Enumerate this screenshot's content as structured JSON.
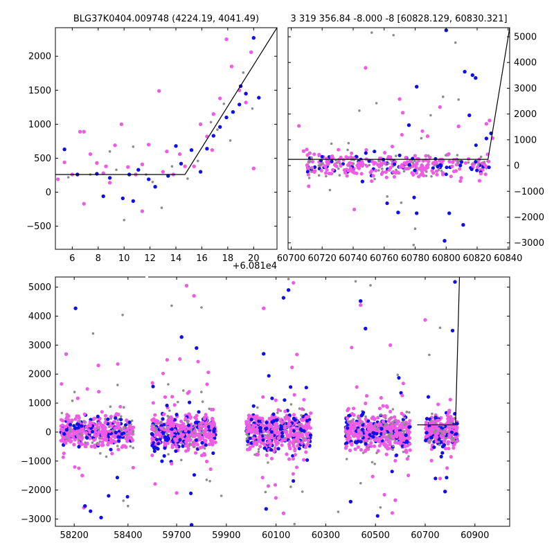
{
  "colors": {
    "gray": "#8c8c8c",
    "blue": "#1010e6",
    "magenta": "#ee5ce6",
    "model_line": "#000000"
  },
  "chart_data": [
    {
      "id": "top-left",
      "type": "scatter",
      "title": "BLG37K0404.009748 (4224.19, 4041.49)",
      "x_offset_label": "+6.081e4",
      "xlim": [
        4.7,
        21.8
      ],
      "ylim": [
        -840,
        2420
      ],
      "xticks": [
        {
          "v": 6,
          "label": "6"
        },
        {
          "v": 8,
          "label": "8"
        },
        {
          "v": 10,
          "label": "10"
        },
        {
          "v": 12,
          "label": "12"
        },
        {
          "v": 14,
          "label": "14"
        },
        {
          "v": 16,
          "label": "16"
        },
        {
          "v": 18,
          "label": "18"
        },
        {
          "v": 20,
          "label": "20"
        }
      ],
      "yticks": [
        {
          "v": -500,
          "label": "−500"
        },
        {
          "v": 0,
          "label": "0"
        },
        {
          "v": 500,
          "label": "500"
        },
        {
          "v": 1000,
          "label": "1000"
        },
        {
          "v": 1500,
          "label": "1500"
        },
        {
          "v": 2000,
          "label": "2000"
        }
      ],
      "ytick_side": "left",
      "model": [
        [
          4.7,
          260
        ],
        [
          14.7,
          260
        ],
        [
          21.8,
          2420
        ]
      ],
      "series": [
        {
          "color": "magenta",
          "points": [
            [
              4.9,
              190
            ],
            [
              5.4,
              440
            ],
            [
              6.0,
              260
            ],
            [
              6.6,
              890
            ],
            [
              6.9,
              890
            ],
            [
              7.4,
              560
            ],
            [
              7.9,
              430
            ],
            [
              8.4,
              280
            ],
            [
              8.9,
              140
            ],
            [
              9.3,
              690
            ],
            [
              9.8,
              1000
            ],
            [
              10.3,
              370
            ],
            [
              10.9,
              260
            ],
            [
              11.4,
              410
            ],
            [
              11.9,
              700
            ],
            [
              12.7,
              1490
            ],
            [
              13.3,
              600
            ],
            [
              13.8,
              260
            ],
            [
              14.3,
              560
            ],
            [
              14.7,
              380
            ],
            [
              15.4,
              380
            ],
            [
              15.9,
              1000
            ],
            [
              16.4,
              820
            ],
            [
              16.9,
              1150
            ],
            [
              17.4,
              1380
            ],
            [
              17.9,
              2250
            ],
            [
              18.3,
              1850
            ],
            [
              18.9,
              1500
            ],
            [
              19.4,
              1320
            ],
            [
              19.8,
              2060
            ],
            [
              20.0,
              350
            ],
            [
              6.9,
              -170
            ],
            [
              8.6,
              380
            ],
            [
              11.4,
              -280
            ],
            [
              13.0,
              300
            ],
            [
              16.8,
              620
            ]
          ]
        },
        {
          "color": "blue",
          "points": [
            [
              5.4,
              630
            ],
            [
              6.4,
              260
            ],
            [
              7.9,
              270
            ],
            [
              8.9,
              210
            ],
            [
              9.9,
              -90
            ],
            [
              10.4,
              260
            ],
            [
              11.1,
              330
            ],
            [
              11.9,
              190
            ],
            [
              12.4,
              80
            ],
            [
              13.4,
              240
            ],
            [
              14.0,
              680
            ],
            [
              14.4,
              420
            ],
            [
              15.9,
              300
            ],
            [
              16.4,
              640
            ],
            [
              16.9,
              830
            ],
            [
              17.4,
              960
            ],
            [
              17.9,
              1100
            ],
            [
              18.4,
              1180
            ],
            [
              19.0,
              1560
            ],
            [
              19.4,
              1450
            ],
            [
              20.0,
              2270
            ],
            [
              20.4,
              1390
            ],
            [
              8.4,
              -60
            ],
            [
              10.7,
              -130
            ],
            [
              15.2,
              620
            ],
            [
              18.9,
              1290
            ]
          ]
        },
        {
          "color": "gray",
          "points": [
            [
              5.7,
              220
            ],
            [
              7.4,
              260
            ],
            [
              9.4,
              330
            ],
            [
              10.0,
              -410
            ],
            [
              10.7,
              670
            ],
            [
              11.7,
              260
            ],
            [
              12.9,
              -230
            ],
            [
              13.7,
              380
            ],
            [
              15.7,
              460
            ],
            [
              16.7,
              1030
            ],
            [
              17.2,
              920
            ],
            [
              18.2,
              760
            ],
            [
              19.2,
              1760
            ],
            [
              19.9,
              1230
            ],
            [
              8.9,
              600
            ],
            [
              12.2,
              150
            ],
            [
              14.9,
              200
            ],
            [
              17.7,
              1300
            ]
          ]
        }
      ]
    },
    {
      "id": "top-right",
      "type": "scatter",
      "title": "3 319 356.84 -8.000 -8 [60828.129, 60830.321]",
      "xlim": [
        60698,
        60841
      ],
      "ylim": [
        -3250,
        5350
      ],
      "xticks": [
        {
          "v": 60700,
          "label": "60700"
        },
        {
          "v": 60720,
          "label": "60720"
        },
        {
          "v": 60740,
          "label": "60740"
        },
        {
          "v": 60760,
          "label": "60760"
        },
        {
          "v": 60780,
          "label": "60780"
        },
        {
          "v": 60800,
          "label": "60800"
        },
        {
          "v": 60820,
          "label": "60820"
        },
        {
          "v": 60840,
          "label": "60840"
        }
      ],
      "yticks": [
        {
          "v": -3000,
          "label": "−3000"
        },
        {
          "v": -2000,
          "label": "−2000"
        },
        {
          "v": -1000,
          "label": "−1000"
        },
        {
          "v": 0,
          "label": "0"
        },
        {
          "v": 1000,
          "label": "1000"
        },
        {
          "v": 2000,
          "label": "2000"
        },
        {
          "v": 3000,
          "label": "3000"
        },
        {
          "v": 4000,
          "label": "4000"
        },
        {
          "v": 5000,
          "label": "5000"
        }
      ],
      "ytick_side": "right",
      "model": [
        [
          60698,
          240
        ],
        [
          60827,
          240
        ],
        [
          60841,
          5350
        ]
      ],
      "series": [
        {
          "color": "magenta",
          "points": [
            [
              60705,
              1540
            ],
            [
              60748,
              3790
            ],
            [
              60770,
              2580
            ],
            [
              60772,
              2050
            ],
            [
              60788,
              1140
            ],
            [
              60796,
              2270
            ],
            [
              60808,
              1520
            ],
            [
              60826,
              1620
            ],
            [
              60828,
              1750
            ],
            [
              60830,
              1060
            ],
            [
              60708,
              560
            ],
            [
              60712,
              480
            ],
            [
              60718,
              420
            ]
          ]
        },
        {
          "color": "blue",
          "points": [
            [
              60776,
              1570
            ],
            [
              60781,
              3060
            ],
            [
              60800,
              5250
            ],
            [
              60812,
              3640
            ],
            [
              60815,
              1950
            ],
            [
              60817,
              3510
            ],
            [
              60819,
              3400
            ],
            [
              60826,
              1050
            ],
            [
              60829,
              1250
            ],
            [
              60802,
              -1850
            ],
            [
              60799,
              -2920
            ],
            [
              60811,
              -2300
            ],
            [
              60781,
              -1850
            ],
            [
              60769,
              -1820
            ],
            [
              60746,
              -620
            ]
          ]
        },
        {
          "color": "gray",
          "points": [
            [
              60752,
              5160
            ],
            [
              60766,
              5060
            ],
            [
              60780,
              -2450
            ],
            [
              60779,
              -3080
            ],
            [
              60744,
              2130
            ],
            [
              60755,
              2420
            ],
            [
              60790,
              1950
            ],
            [
              60798,
              2670
            ],
            [
              60806,
              4770
            ],
            [
              60808,
              2560
            ],
            [
              60771,
              -1440
            ],
            [
              60725,
              -950
            ],
            [
              60737,
              870
            ],
            [
              60762,
              -1200
            ],
            [
              60784,
              1060
            ]
          ]
        }
      ],
      "cluster": [
        {
          "start": 60710,
          "end": 60828,
          "count": 380,
          "spread": 230,
          "tail": 800
        }
      ]
    },
    {
      "id": "bottom",
      "type": "scatter",
      "title": "",
      "xlim": [
        58130,
        61040
      ],
      "ylim": [
        -3250,
        5350
      ],
      "xticks": [
        {
          "v": 58200,
          "label": "58200"
        },
        {
          "v": 58400,
          "label": "58400"
        },
        {
          "v": 59700,
          "label": "59700"
        },
        {
          "v": 59900,
          "label": "59900"
        },
        {
          "v": 60100,
          "label": "60100"
        },
        {
          "v": 60300,
          "label": "60300"
        },
        {
          "v": 60500,
          "label": "60500"
        },
        {
          "v": 60700,
          "label": "60700"
        },
        {
          "v": 60900,
          "label": "60900"
        }
      ],
      "yticks": [
        {
          "v": -3000,
          "label": "−3000"
        },
        {
          "v": -2000,
          "label": "−2000"
        },
        {
          "v": -1000,
          "label": "−1000"
        },
        {
          "v": 0,
          "label": "0"
        },
        {
          "v": 1000,
          "label": "1000"
        },
        {
          "v": 2000,
          "label": "2000"
        },
        {
          "v": 3000,
          "label": "3000"
        },
        {
          "v": 4000,
          "label": "4000"
        },
        {
          "v": 5000,
          "label": "5000"
        }
      ],
      "ytick_side": "left",
      "axis_break": {
        "position": 58470,
        "top_gap": true
      },
      "x_segments": [
        {
          "from": 58130,
          "to": 58470
        },
        {
          "from": 59580,
          "to": 61040
        }
      ],
      "model": [
        [
          60668,
          250
        ],
        [
          60822,
          250
        ],
        [
          60838,
          5350
        ]
      ],
      "cluster": [
        {
          "start": 58150,
          "end": 58420,
          "count": 520,
          "spread": 260,
          "tail": 1100
        },
        {
          "start": 59600,
          "end": 59860,
          "count": 560,
          "spread": 310,
          "tail": 1400
        },
        {
          "start": 59980,
          "end": 60240,
          "count": 560,
          "spread": 310,
          "tail": 1500
        },
        {
          "start": 60380,
          "end": 60640,
          "count": 560,
          "spread": 300,
          "tail": 1500
        },
        {
          "start": 60700,
          "end": 60830,
          "count": 320,
          "spread": 260,
          "tail": 1200
        }
      ],
      "series": [
        {
          "color": "blue",
          "points": [
            [
              58205,
              4270
            ],
            [
              59720,
              3280
            ],
            [
              59780,
              2900
            ],
            [
              60050,
              2700
            ],
            [
              60130,
              4630
            ],
            [
              60150,
              4900
            ],
            [
              60440,
              4520
            ],
            [
              60460,
              3570
            ],
            [
              60810,
              3500
            ],
            [
              60820,
              5180
            ],
            [
              58240,
              -2550
            ],
            [
              58300,
              -2950
            ],
            [
              59760,
              -3200
            ],
            [
              60060,
              -2650
            ],
            [
              60400,
              -2400
            ],
            [
              60780,
              -2050
            ]
          ]
        },
        {
          "color": "magenta",
          "points": [
            [
              58170,
              2690
            ],
            [
              58290,
              2300
            ],
            [
              59740,
              5050
            ],
            [
              59770,
              4700
            ],
            [
              60050,
              4270
            ],
            [
              60170,
              5150
            ],
            [
              60440,
              4380
            ],
            [
              60560,
              3000
            ],
            [
              60700,
              3870
            ],
            [
              58230,
              -1500
            ],
            [
              59700,
              -2100
            ],
            [
              60580,
              -2350
            ],
            [
              60130,
              -2800
            ]
          ]
        },
        {
          "color": "gray",
          "points": [
            [
              58380,
              4040
            ],
            [
              58270,
              3400
            ],
            [
              59680,
              4360
            ],
            [
              59800,
              4300
            ],
            [
              60150,
              5280
            ],
            [
              60420,
              5200
            ],
            [
              60480,
              5060
            ],
            [
              60760,
              3600
            ],
            [
              58400,
              -2550
            ],
            [
              59880,
              -2200
            ],
            [
              60350,
              -2750
            ],
            [
              60520,
              -2600
            ]
          ]
        }
      ]
    }
  ]
}
